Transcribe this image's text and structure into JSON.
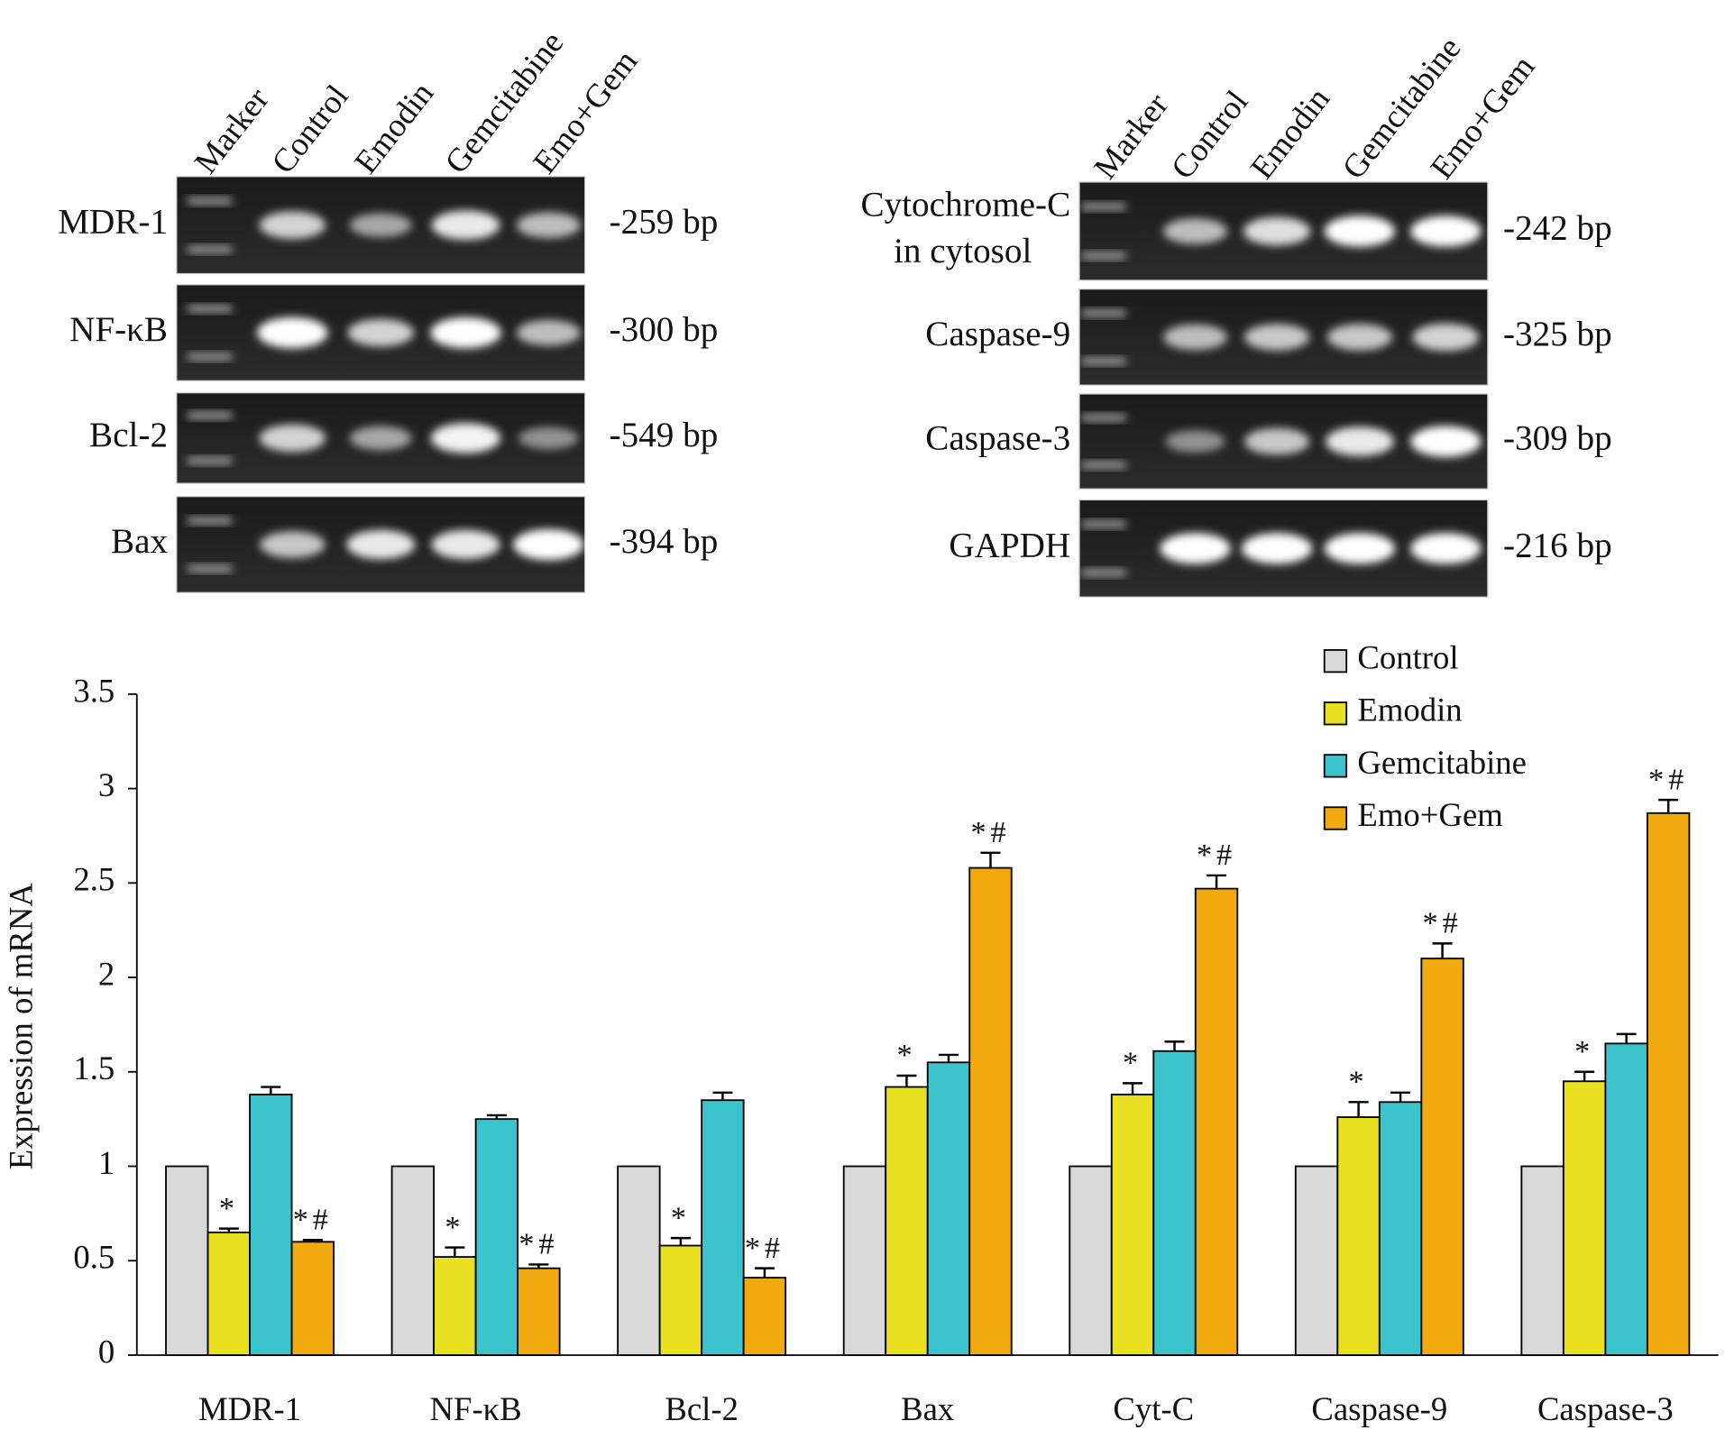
{
  "gels": [
    {
      "lanes": [
        "Marker",
        "Control",
        "Emodin",
        "Gemcitabine",
        "Emo+Gem"
      ],
      "rows": [
        {
          "label": [
            "MDR-1"
          ],
          "size": "-259 bp"
        },
        {
          "label": [
            "NF-κB"
          ],
          "size": "-300 bp"
        },
        {
          "label": [
            "Bcl-2"
          ],
          "size": "-549 bp"
        },
        {
          "label": [
            "Bax"
          ],
          "size": "-394 bp"
        }
      ]
    },
    {
      "lanes": [
        "Marker",
        "Control",
        "Emodin",
        "Gemcitabine",
        "Emo+Gem"
      ],
      "rows": [
        {
          "label": [
            "Cytochrome-C",
            "in cytosol"
          ],
          "size": "-242 bp"
        },
        {
          "label": [
            "Caspase-9"
          ],
          "size": "-325 bp"
        },
        {
          "label": [
            "Caspase-3"
          ],
          "size": "-309 bp"
        },
        {
          "label": [
            "GAPDH"
          ],
          "size": "-216 bp"
        }
      ]
    }
  ],
  "chart_data": {
    "type": "bar",
    "y_label": "Expression of mRNA",
    "categories": [
      "MDR-1",
      "NF-κB",
      "Bcl-2",
      "Bax",
      "Cyt-C",
      "Caspase-9",
      "Caspase-3"
    ],
    "series": [
      {
        "name": "Control",
        "color": "#d8d8d8",
        "values": [
          1,
          1,
          1,
          1,
          1,
          1,
          1
        ]
      },
      {
        "name": "Emodin",
        "color": "#e8e020",
        "values": [
          0.65,
          0.52,
          0.58,
          1.42,
          1.38,
          1.26,
          1.45
        ],
        "errors": [
          0.02,
          0.05,
          0.04,
          0.06,
          0.06,
          0.08,
          0.05
        ],
        "annotations": [
          "*",
          "*",
          "*",
          "*",
          "*",
          "*",
          "*"
        ]
      },
      {
        "name": "Gemcitabine",
        "color": "#3cc4cc",
        "values": [
          1.38,
          1.25,
          1.35,
          1.55,
          1.61,
          1.34,
          1.65
        ],
        "errors": [
          0.04,
          0.02,
          0.04,
          0.04,
          0.05,
          0.05,
          0.05
        ]
      },
      {
        "name": "Emo+Gem",
        "color": "#f0aa10",
        "values": [
          0.6,
          0.46,
          0.41,
          2.58,
          2.47,
          2.1,
          2.87
        ],
        "errors": [
          0.01,
          0.02,
          0.05,
          0.08,
          0.07,
          0.08,
          0.07
        ],
        "annotations": [
          "*#",
          "*#",
          "*#",
          "*#",
          "*#",
          "*#",
          "*#"
        ]
      }
    ],
    "ylim": [
      0,
      3.5
    ],
    "yticks": [
      0,
      0.5,
      1,
      1.5,
      2,
      2.5,
      3,
      3.5
    ],
    "legend": "top-right"
  }
}
